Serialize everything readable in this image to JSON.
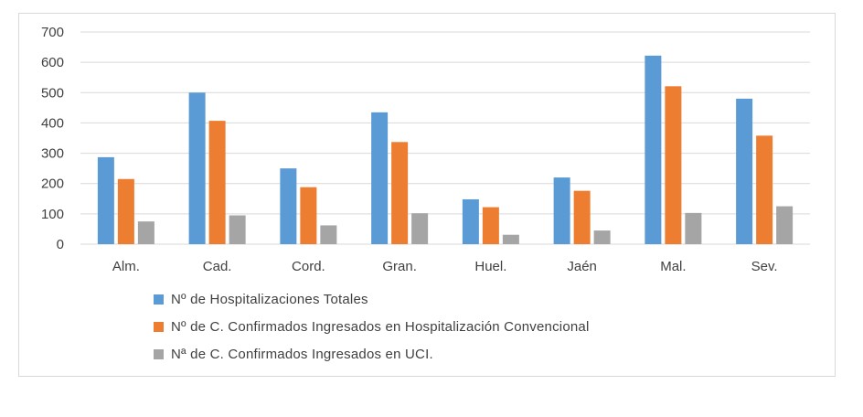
{
  "chart_data": {
    "type": "bar",
    "categories": [
      "Alm.",
      "Cad.",
      "Cord.",
      "Gran.",
      "Huel.",
      "Jaén",
      "Mal.",
      "Sev."
    ],
    "series": [
      {
        "name": "Nº de Hospitalizaciones Totales",
        "color": "#5b9bd5",
        "values": [
          287,
          500,
          250,
          435,
          148,
          220,
          622,
          480
        ]
      },
      {
        "name": "Nº de C. Confirmados Ingresados en Hospitalización Convencional",
        "color": "#ed7d31",
        "values": [
          215,
          407,
          188,
          337,
          122,
          176,
          521,
          358
        ]
      },
      {
        "name": "Nª de C. Confirmados Ingresados en UCI.",
        "color": "#a5a5a5",
        "values": [
          75,
          95,
          62,
          102,
          31,
          45,
          103,
          125
        ]
      }
    ],
    "ylim": [
      0,
      700
    ],
    "yticks": [
      0,
      100,
      200,
      300,
      400,
      500,
      600,
      700
    ],
    "grid": true,
    "legend_position": "bottom"
  }
}
